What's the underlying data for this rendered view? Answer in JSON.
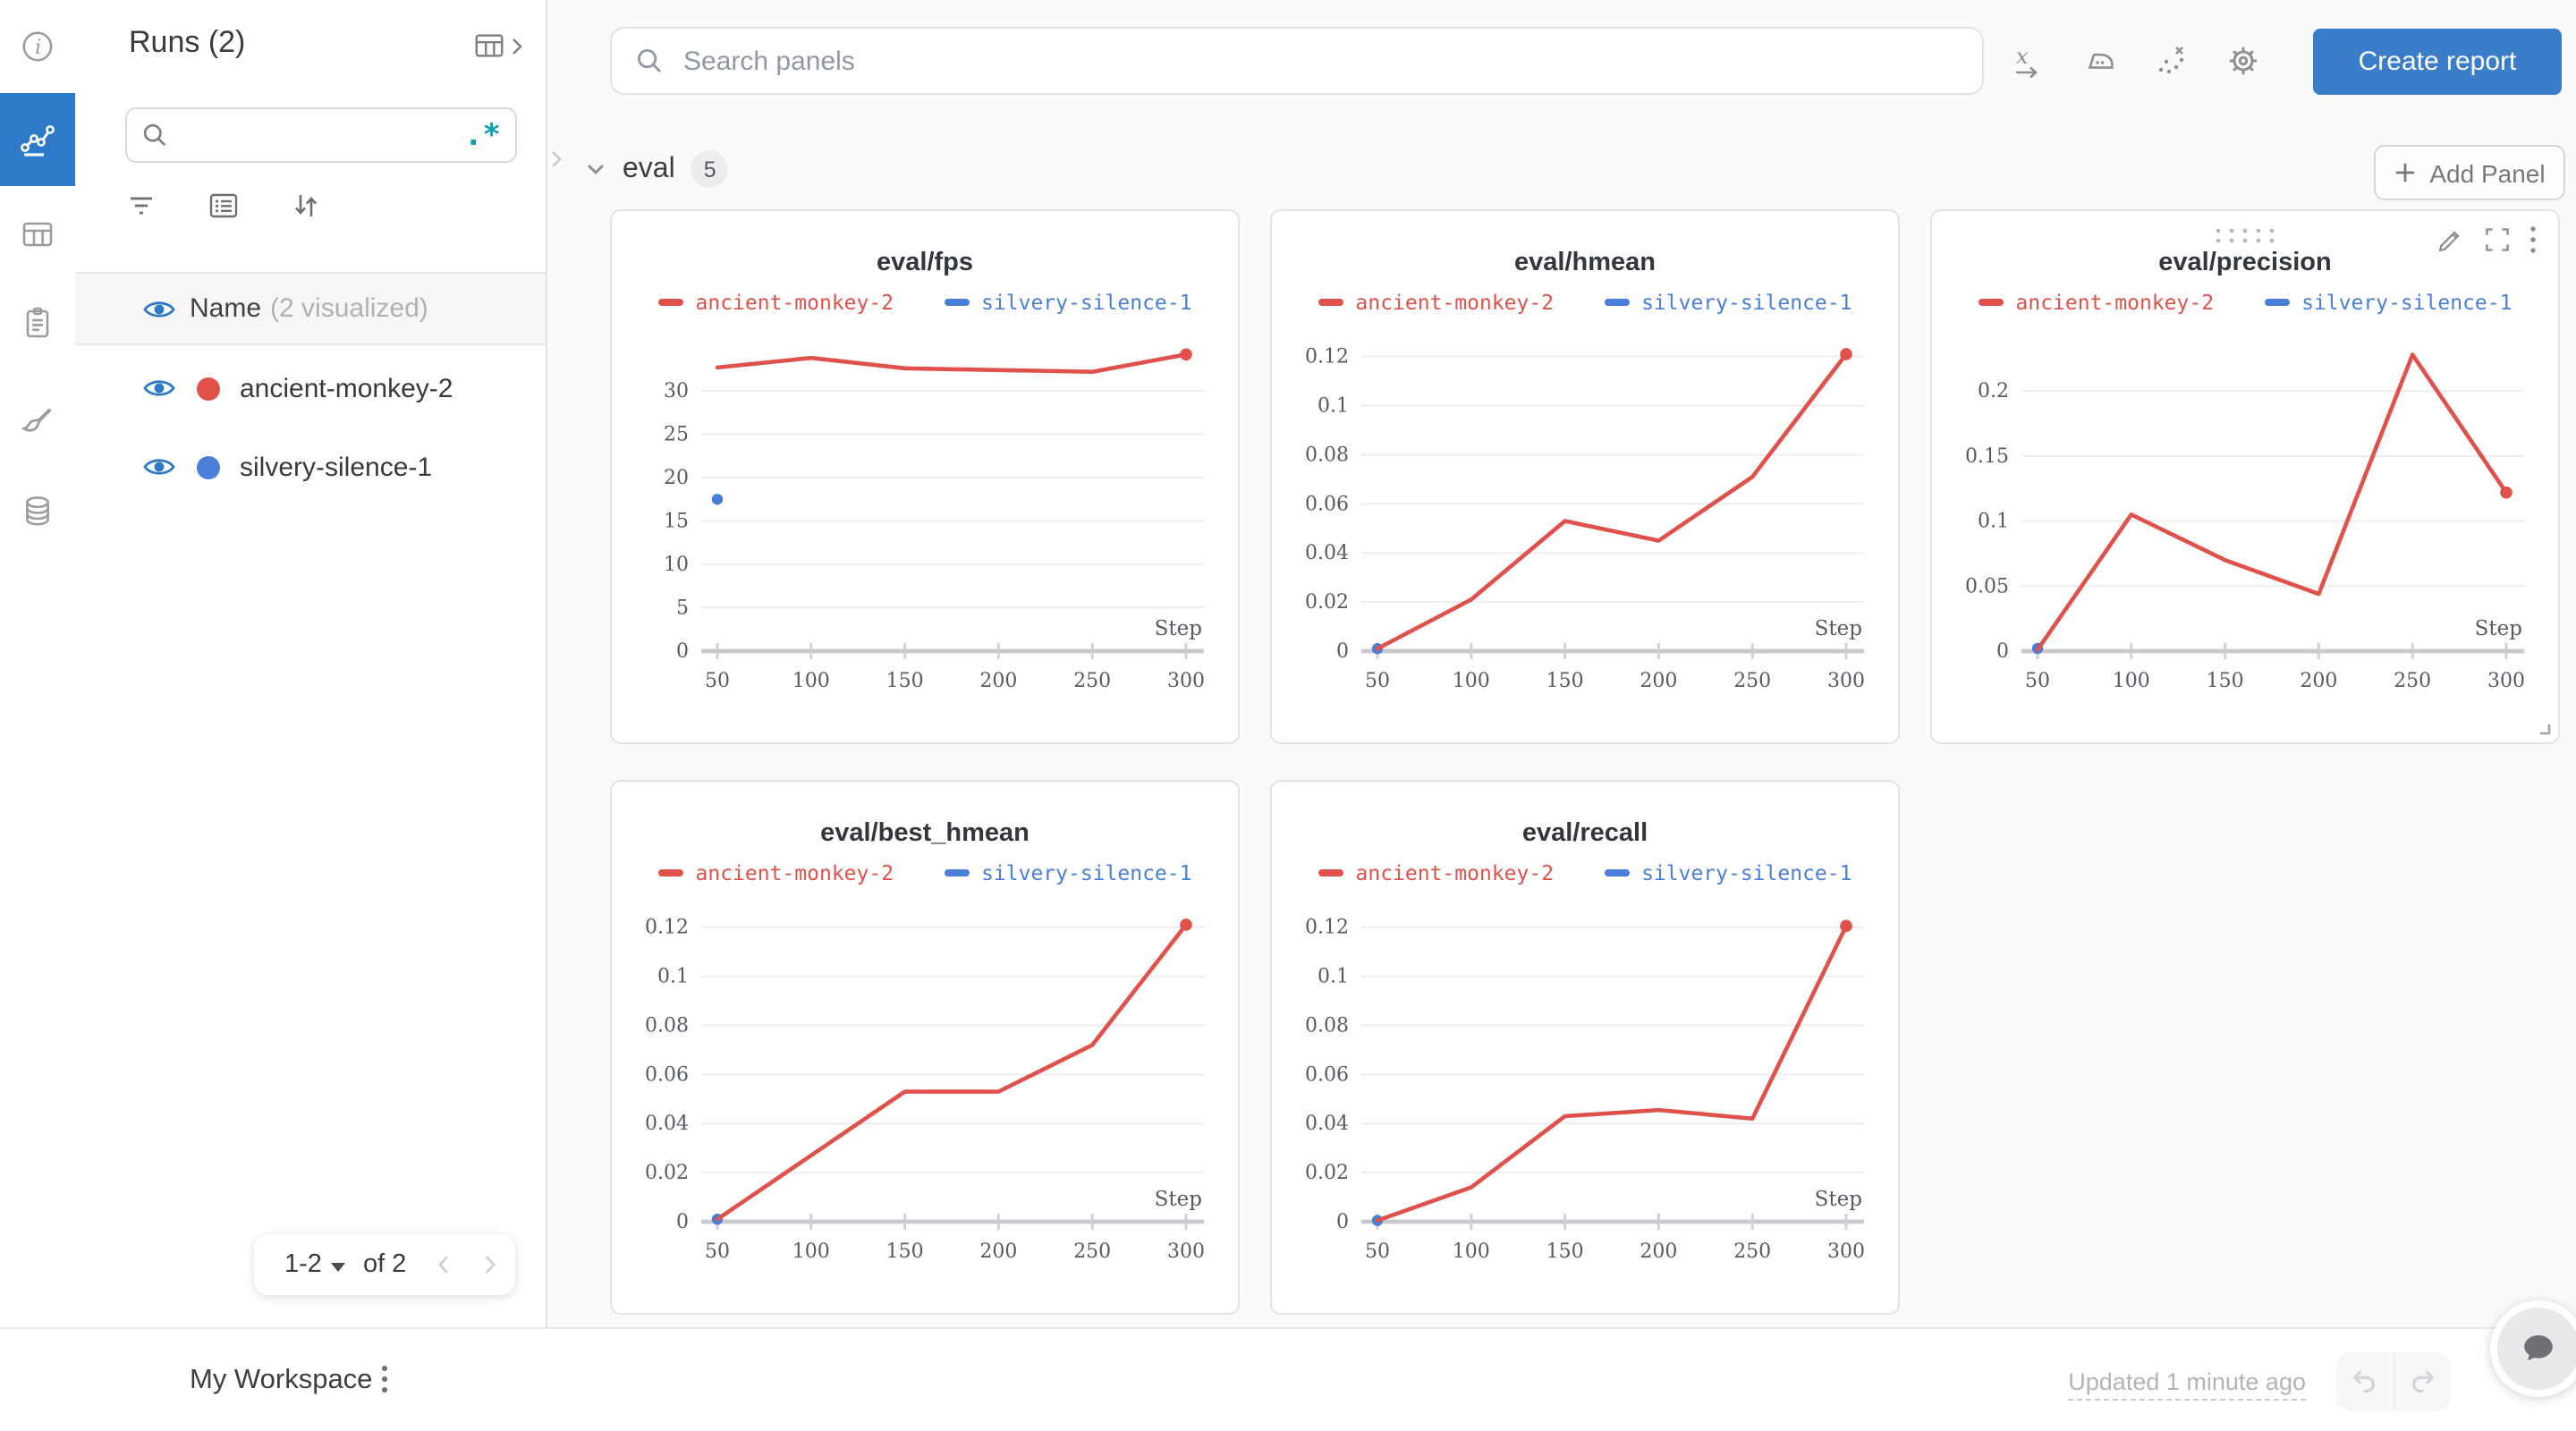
{
  "colors": {
    "nav_blue": "#2e7ac8",
    "accent_blue": "#3a7dc9",
    "run_red": "#e0514b",
    "run_blue": "#4a7ed7",
    "eye_blue": "#2e78c7",
    "regex_teal": "#0e9fb5"
  },
  "runs_panel": {
    "title": "Runs (2)",
    "search_value": "",
    "regex_glyph": ".*",
    "name_header": "Name",
    "visualized_note": "(2 visualized)",
    "runs": [
      {
        "name": "ancient-monkey-2",
        "color": "#e0514b"
      },
      {
        "name": "silvery-silence-1",
        "color": "#4a7ed7"
      }
    ],
    "pagination": {
      "range_label": "1-2",
      "of_label": "of 2"
    }
  },
  "topbar": {
    "search_placeholder": "Search panels",
    "create_report_label": "Create report"
  },
  "section": {
    "title": "eval",
    "panel_count": "5",
    "add_panel_label": "Add Panel"
  },
  "chart_data": [
    {
      "type": "line",
      "title": "eval/fps",
      "xlabel": "Step",
      "xlim": [
        50,
        300
      ],
      "xticks": [
        50,
        100,
        150,
        200,
        250,
        300
      ],
      "yticks": [
        [
          0,
          "0"
        ],
        [
          5,
          "5"
        ],
        [
          10,
          "10"
        ],
        [
          15,
          "15"
        ],
        [
          20,
          "20"
        ],
        [
          25,
          "25"
        ],
        [
          30,
          "30"
        ]
      ],
      "ymax": 36.5,
      "grid": true,
      "legend_position": "top",
      "legend": [
        {
          "label": "ancient-monkey-2",
          "color": "#e0514b"
        },
        {
          "label": "silvery-silence-1",
          "color": "#4a7ed7"
        }
      ],
      "series": [
        {
          "name": "silvery-silence-1",
          "color": "#4a7ed7",
          "points": [
            [
              50,
              17.5
            ]
          ]
        },
        {
          "name": "ancient-monkey-2",
          "color": "#e0514b",
          "end_dot": true,
          "points": [
            [
              50,
              32.7
            ],
            [
              100,
              33.8
            ],
            [
              150,
              32.6
            ],
            [
              200,
              32.4
            ],
            [
              250,
              32.2
            ],
            [
              300,
              34.2
            ]
          ]
        }
      ]
    },
    {
      "type": "line",
      "title": "eval/hmean",
      "xlabel": "Step",
      "xlim": [
        50,
        300
      ],
      "xticks": [
        50,
        100,
        150,
        200,
        250,
        300
      ],
      "yticks": [
        [
          0,
          "0"
        ],
        [
          0.02,
          "0.02"
        ],
        [
          0.04,
          "0.04"
        ],
        [
          0.06,
          "0.06"
        ],
        [
          0.08,
          "0.08"
        ],
        [
          0.1,
          "0.1"
        ],
        [
          0.12,
          "0.12"
        ]
      ],
      "ymax": 0.129,
      "grid": true,
      "legend_position": "top",
      "legend": [
        {
          "label": "ancient-monkey-2",
          "color": "#e0514b"
        },
        {
          "label": "silvery-silence-1",
          "color": "#4a7ed7"
        }
      ],
      "series": [
        {
          "name": "silvery-silence-1",
          "color": "#4a7ed7",
          "points": [
            [
              50,
              0.001
            ]
          ]
        },
        {
          "name": "ancient-monkey-2",
          "color": "#e0514b",
          "end_dot": true,
          "points": [
            [
              50,
              0.001
            ],
            [
              100,
              0.021
            ],
            [
              150,
              0.053
            ],
            [
              200,
              0.045
            ],
            [
              250,
              0.071
            ],
            [
              300,
              0.121
            ]
          ]
        }
      ]
    },
    {
      "type": "line",
      "title": "eval/precision",
      "xlabel": "Step",
      "xlim": [
        50,
        300
      ],
      "xticks": [
        50,
        100,
        150,
        200,
        250,
        300
      ],
      "yticks": [
        [
          0,
          "0"
        ],
        [
          0.05,
          "0.05"
        ],
        [
          0.1,
          "0.1"
        ],
        [
          0.15,
          "0.15"
        ],
        [
          0.2,
          "0.2"
        ]
      ],
      "ymax": 0.2435,
      "grid": true,
      "legend_position": "top",
      "hover_controls": true,
      "legend": [
        {
          "label": "ancient-monkey-2",
          "color": "#e0514b"
        },
        {
          "label": "silvery-silence-1",
          "color": "#4a7ed7"
        }
      ],
      "series": [
        {
          "name": "silvery-silence-1",
          "color": "#4a7ed7",
          "points": [
            [
              50,
              0.002
            ]
          ]
        },
        {
          "name": "ancient-monkey-2",
          "color": "#e0514b",
          "end_dot": true,
          "points": [
            [
              50,
              0.001
            ],
            [
              100,
              0.105
            ],
            [
              150,
              0.07
            ],
            [
              200,
              0.044
            ],
            [
              250,
              0.228
            ],
            [
              300,
              0.122
            ]
          ]
        }
      ]
    },
    {
      "type": "line",
      "title": "eval/best_hmean",
      "xlabel": "Step",
      "xlim": [
        50,
        300
      ],
      "xticks": [
        50,
        100,
        150,
        200,
        250,
        300
      ],
      "yticks": [
        [
          0,
          "0"
        ],
        [
          0.02,
          "0.02"
        ],
        [
          0.04,
          "0.04"
        ],
        [
          0.06,
          "0.06"
        ],
        [
          0.08,
          "0.08"
        ],
        [
          0.1,
          "0.1"
        ],
        [
          0.12,
          "0.12"
        ]
      ],
      "ymax": 0.129,
      "grid": true,
      "legend_position": "top",
      "legend": [
        {
          "label": "ancient-monkey-2",
          "color": "#e0514b"
        },
        {
          "label": "silvery-silence-1",
          "color": "#4a7ed7"
        }
      ],
      "series": [
        {
          "name": "silvery-silence-1",
          "color": "#4a7ed7",
          "points": [
            [
              50,
              0.001
            ]
          ]
        },
        {
          "name": "ancient-monkey-2",
          "color": "#e0514b",
          "end_dot": true,
          "points": [
            [
              50,
              0.001
            ],
            [
              100,
              0.027
            ],
            [
              150,
              0.053
            ],
            [
              200,
              0.053
            ],
            [
              250,
              0.072
            ],
            [
              300,
              0.121
            ]
          ]
        }
      ]
    },
    {
      "type": "line",
      "title": "eval/recall",
      "xlabel": "Step",
      "xlim": [
        50,
        300
      ],
      "xticks": [
        50,
        100,
        150,
        200,
        250,
        300
      ],
      "yticks": [
        [
          0,
          "0"
        ],
        [
          0.02,
          "0.02"
        ],
        [
          0.04,
          "0.04"
        ],
        [
          0.06,
          "0.06"
        ],
        [
          0.08,
          "0.08"
        ],
        [
          0.1,
          "0.1"
        ],
        [
          0.12,
          "0.12"
        ]
      ],
      "ymax": 0.129,
      "grid": true,
      "legend_position": "top",
      "legend": [
        {
          "label": "ancient-monkey-2",
          "color": "#e0514b"
        },
        {
          "label": "silvery-silence-1",
          "color": "#4a7ed7"
        }
      ],
      "series": [
        {
          "name": "silvery-silence-1",
          "color": "#4a7ed7",
          "points": [
            [
              50,
              0.0005
            ]
          ]
        },
        {
          "name": "ancient-monkey-2",
          "color": "#e0514b",
          "end_dot": true,
          "points": [
            [
              50,
              0.0005
            ],
            [
              100,
              0.014
            ],
            [
              150,
              0.043
            ],
            [
              200,
              0.0455
            ],
            [
              250,
              0.042
            ],
            [
              300,
              0.1205
            ]
          ]
        }
      ]
    }
  ],
  "bottombar": {
    "workspace_label": "My Workspace",
    "updated_label": "Updated 1 minute ago"
  }
}
